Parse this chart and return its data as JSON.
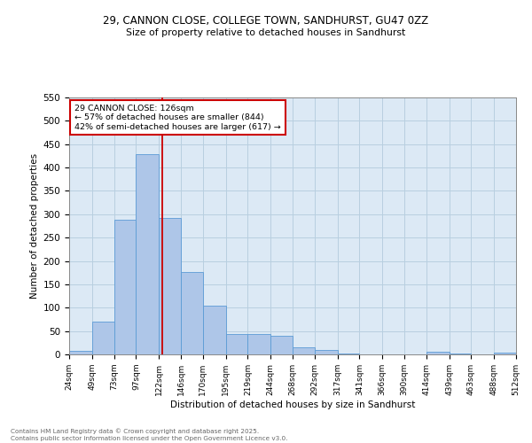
{
  "title_line1": "29, CANNON CLOSE, COLLEGE TOWN, SANDHURST, GU47 0ZZ",
  "title_line2": "Size of property relative to detached houses in Sandhurst",
  "xlabel": "Distribution of detached houses by size in Sandhurst",
  "ylabel": "Number of detached properties",
  "bar_edges": [
    24,
    49,
    73,
    97,
    122,
    146,
    170,
    195,
    219,
    244,
    268,
    292,
    317,
    341,
    366,
    390,
    414,
    439,
    463,
    488,
    512
  ],
  "bar_heights": [
    8,
    70,
    288,
    428,
    292,
    176,
    105,
    44,
    43,
    40,
    16,
    9,
    1,
    0,
    0,
    0,
    5,
    1,
    0,
    3
  ],
  "bar_color": "#aec6e8",
  "bar_edgecolor": "#5b9bd5",
  "ylim": [
    0,
    550
  ],
  "yticks": [
    0,
    50,
    100,
    150,
    200,
    250,
    300,
    350,
    400,
    450,
    500,
    550
  ],
  "property_size": 126,
  "vline_color": "#cc0000",
  "annotation_text": "29 CANNON CLOSE: 126sqm\n← 57% of detached houses are smaller (844)\n42% of semi-detached houses are larger (617) →",
  "annotation_box_color": "#cc0000",
  "background_color": "#ffffff",
  "axes_bg_color": "#dce9f5",
  "grid_color": "#b8cfe0",
  "footnote": "Contains HM Land Registry data © Crown copyright and database right 2025.\nContains public sector information licensed under the Open Government Licence v3.0."
}
